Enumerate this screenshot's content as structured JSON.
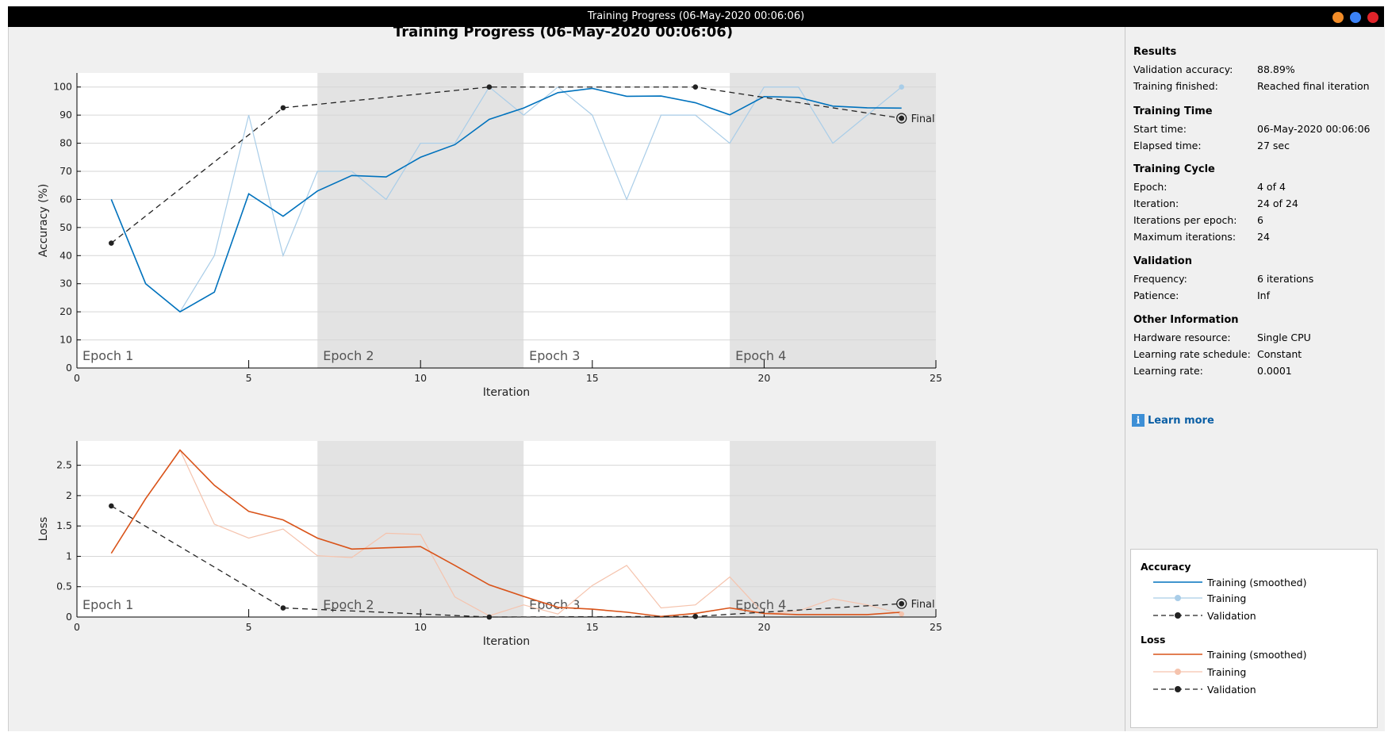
{
  "window": {
    "title": "Training Progress (06-May-2020 00:06:06)",
    "button_colors": [
      "#f28c28",
      "#3b82f6",
      "#e0242a"
    ]
  },
  "colors": {
    "acc_smoothed": "#0072bd",
    "acc_training": "#a9cde8",
    "loss_smoothed": "#d95319",
    "loss_training": "#f5c3ad",
    "validation": "#222222",
    "epoch_shade": "#e3e3e3"
  },
  "chart_data": [
    {
      "type": "line",
      "title": "Training Progress (06-May-2020 00:06:06)",
      "xlabel": "Iteration",
      "ylabel": "Accuracy (%)",
      "xlim": [
        0,
        25
      ],
      "ylim": [
        0,
        105
      ],
      "xticks": [
        0,
        5,
        10,
        15,
        20,
        25
      ],
      "yticks": [
        0,
        10,
        20,
        30,
        40,
        50,
        60,
        70,
        80,
        90,
        100
      ],
      "grid": true,
      "epochs": [
        {
          "label": "Epoch 1",
          "start": 0,
          "end": 7
        },
        {
          "label": "Epoch 2",
          "start": 7,
          "end": 13
        },
        {
          "label": "Epoch 3",
          "start": 13,
          "end": 19
        },
        {
          "label": "Epoch 4",
          "start": 19,
          "end": 25
        }
      ],
      "series": [
        {
          "name": "Training",
          "style": "raw",
          "x": [
            1,
            2,
            3,
            4,
            5,
            6,
            7,
            8,
            9,
            10,
            11,
            12,
            13,
            14,
            15,
            16,
            17,
            18,
            19,
            20,
            21,
            22,
            23,
            24
          ],
          "y": [
            60,
            30,
            20,
            40,
            90,
            40,
            70,
            70,
            60,
            80,
            80,
            100,
            90,
            100,
            90,
            60,
            90,
            90,
            80,
            100,
            100,
            80,
            90,
            100
          ]
        },
        {
          "name": "Training (smoothed)",
          "style": "smoothed",
          "x": [
            1,
            2,
            3,
            4,
            5,
            6,
            7,
            8,
            9,
            10,
            11,
            12,
            13,
            14,
            15,
            16,
            17,
            18,
            19,
            20,
            21,
            22,
            23,
            24
          ],
          "y": [
            60,
            30,
            20,
            27,
            62,
            54,
            63,
            68.5,
            68,
            75,
            79.5,
            88.5,
            92.5,
            98,
            99.5,
            96.7,
            96.8,
            94.4,
            90.1,
            96.6,
            96.3,
            93.2,
            92.6,
            92.5
          ]
        },
        {
          "name": "Validation",
          "style": "validation",
          "x": [
            1,
            6,
            12,
            18,
            24
          ],
          "y": [
            44.44,
            92.6,
            100,
            100,
            88.89
          ]
        }
      ],
      "annotation": "Final"
    },
    {
      "type": "line",
      "xlabel": "Iteration",
      "ylabel": "Loss",
      "xlim": [
        0,
        25
      ],
      "ylim": [
        0,
        2.9
      ],
      "xticks": [
        0,
        5,
        10,
        15,
        20,
        25
      ],
      "yticks": [
        0,
        0.5,
        1,
        1.5,
        2,
        2.5
      ],
      "grid": true,
      "epochs": [
        {
          "label": "Epoch 1",
          "start": 0,
          "end": 7
        },
        {
          "label": "Epoch 2",
          "start": 7,
          "end": 13
        },
        {
          "label": "Epoch 3",
          "start": 13,
          "end": 19
        },
        {
          "label": "Epoch 4",
          "start": 19,
          "end": 25
        }
      ],
      "series": [
        {
          "name": "Training",
          "style": "raw",
          "x": [
            1,
            2,
            3,
            4,
            5,
            6,
            7,
            8,
            9,
            10,
            11,
            12,
            13,
            14,
            15,
            16,
            17,
            18,
            19,
            20,
            21,
            22,
            23,
            24
          ],
          "y": [
            1.05,
            1.95,
            2.75,
            1.53,
            1.3,
            1.45,
            1.01,
            0.98,
            1.38,
            1.36,
            0.33,
            0.02,
            0.2,
            0.05,
            0.52,
            0.85,
            0.15,
            0.2,
            0.66,
            0.05,
            0.1,
            0.3,
            0.2,
            0.05
          ]
        },
        {
          "name": "Training (smoothed)",
          "style": "smoothed",
          "x": [
            1,
            2,
            3,
            4,
            5,
            6,
            7,
            8,
            9,
            10,
            11,
            12,
            13,
            14,
            15,
            16,
            17,
            18,
            19,
            20,
            21,
            22,
            23,
            24
          ],
          "y": [
            1.05,
            1.95,
            2.75,
            2.17,
            1.74,
            1.6,
            1.3,
            1.12,
            1.14,
            1.16,
            0.85,
            0.53,
            0.34,
            0.16,
            0.13,
            0.08,
            0.01,
            0.06,
            0.15,
            0.06,
            0.04,
            0.04,
            0.04,
            0.08
          ]
        },
        {
          "name": "Validation",
          "style": "validation",
          "x": [
            1,
            6,
            12,
            18,
            24
          ],
          "y": [
            1.83,
            0.15,
            0.0,
            0.01,
            0.22
          ]
        }
      ],
      "annotation": "Final"
    }
  ],
  "results": {
    "title": "Results",
    "rows": [
      {
        "label": "Validation accuracy:",
        "value": "88.89%"
      },
      {
        "label": "Training finished:",
        "value": "Reached final iteration"
      }
    ]
  },
  "training_time": {
    "title": "Training Time",
    "rows": [
      {
        "label": "Start time:",
        "value": "06-May-2020 00:06:06"
      },
      {
        "label": "Elapsed time:",
        "value": "27 sec"
      }
    ]
  },
  "training_cycle": {
    "title": "Training Cycle",
    "rows": [
      {
        "label": "Epoch:",
        "value": "4 of 4"
      },
      {
        "label": "Iteration:",
        "value": "24 of 24"
      },
      {
        "label": "Iterations per epoch:",
        "value": "6"
      },
      {
        "label": "Maximum iterations:",
        "value": "24"
      }
    ]
  },
  "validation": {
    "title": "Validation",
    "rows": [
      {
        "label": "Frequency:",
        "value": "6 iterations"
      },
      {
        "label": "Patience:",
        "value": "Inf"
      }
    ]
  },
  "other_info": {
    "title": "Other Information",
    "rows": [
      {
        "label": "Hardware resource:",
        "value": "Single CPU"
      },
      {
        "label": "Learning rate schedule:",
        "value": "Constant"
      },
      {
        "label": "Learning rate:",
        "value": "0.0001"
      }
    ]
  },
  "learn_more": {
    "label": "Learn more",
    "icon": "info-icon"
  },
  "legend": {
    "accuracy_title": "Accuracy",
    "accuracy_items": [
      "Training (smoothed)",
      "Training",
      "Validation"
    ],
    "loss_title": "Loss",
    "loss_items": [
      "Training (smoothed)",
      "Training",
      "Validation"
    ]
  }
}
